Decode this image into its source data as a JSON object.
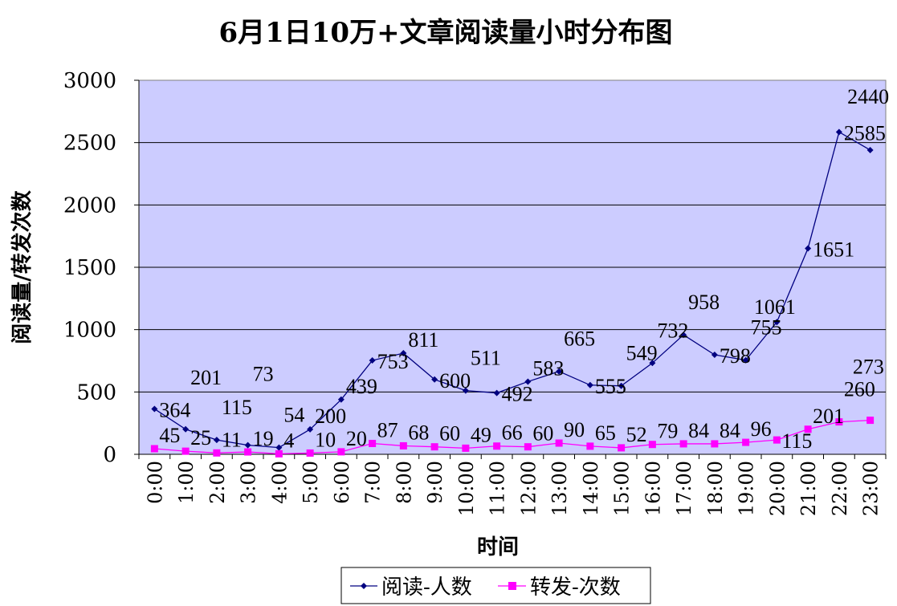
{
  "chart_data": {
    "type": "line",
    "title": "6月1日10万+文章阅读量小时分布图",
    "xlabel": "时间",
    "ylabel": "阅读量/转发次数",
    "ylim": [
      0,
      3000
    ],
    "yticks": [
      0,
      500,
      1000,
      1500,
      2000,
      2500,
      3000
    ],
    "grid": true,
    "legend_position": "bottom",
    "plot_background": "#ccccff",
    "categories": [
      "0:00",
      "1:00",
      "2:00",
      "3:00",
      "4:00",
      "5:00",
      "6:00",
      "7:00",
      "8:00",
      "9:00",
      "10:00",
      "11:00",
      "12:00",
      "13:00",
      "14:00",
      "15:00",
      "16:00",
      "17:00",
      "18:00",
      "19:00",
      "20:00",
      "21:00",
      "22:00",
      "23:00"
    ],
    "series": [
      {
        "name": "阅读-人数",
        "color": "#000080",
        "marker": "diamond",
        "values": [
          364,
          201,
          115,
          73,
          54,
          200,
          439,
          753,
          811,
          600,
          511,
          492,
          583,
          665,
          555,
          549,
          732,
          958,
          798,
          755,
          1061,
          1651,
          2585,
          2440
        ]
      },
      {
        "name": "转发-次数",
        "color": "#ff00ff",
        "marker": "square",
        "values": [
          45,
          25,
          11,
          19,
          4,
          10,
          20,
          87,
          68,
          60,
          49,
          66,
          60,
          90,
          65,
          52,
          79,
          84,
          84,
          96,
          115,
          201,
          260,
          273
        ]
      }
    ]
  }
}
